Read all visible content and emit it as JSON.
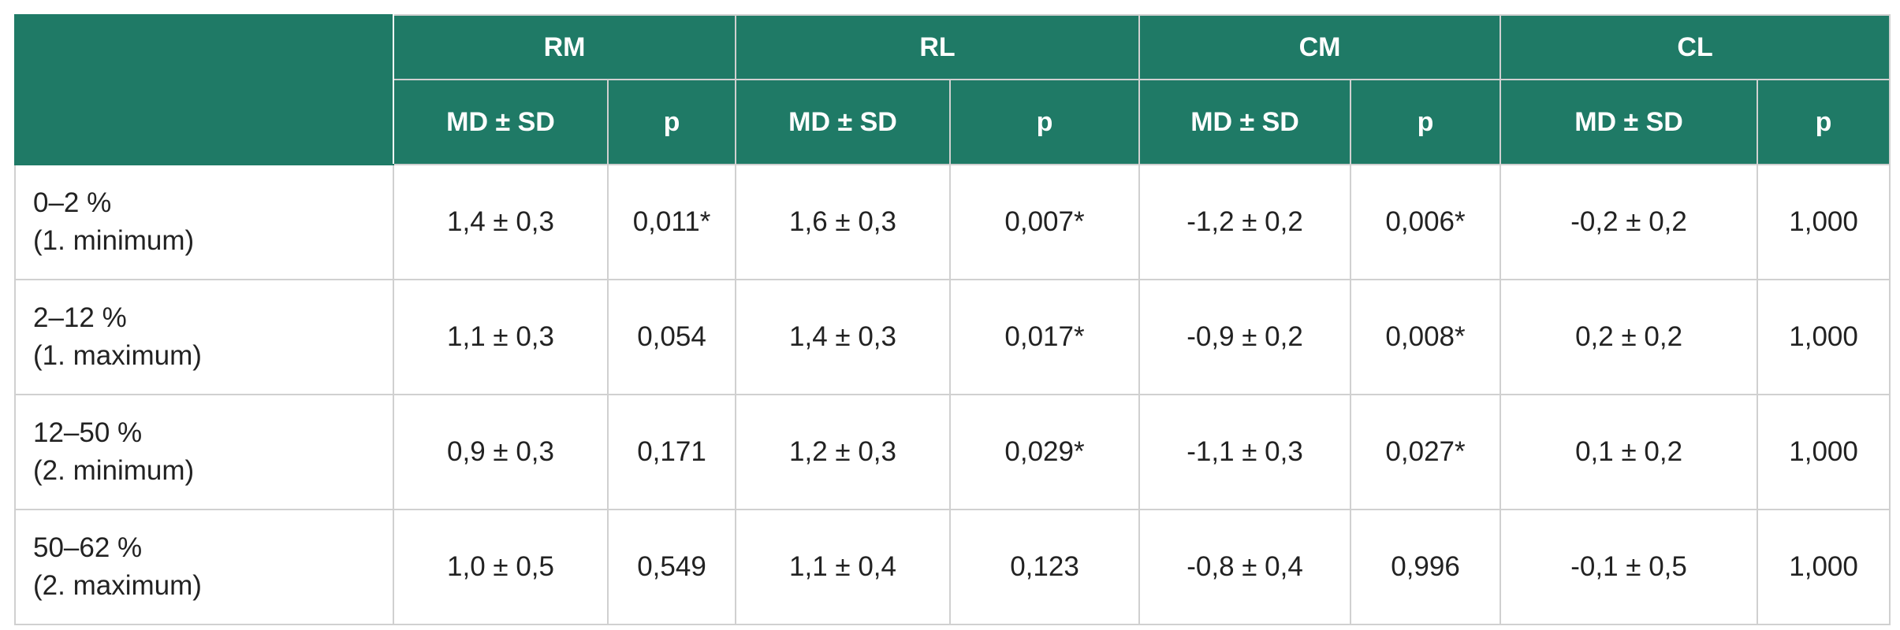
{
  "groups": [
    "RM",
    "RL",
    "CM",
    "CL"
  ],
  "subheaders": {
    "md": "MD ± SD",
    "p": "p"
  },
  "rows": [
    {
      "range": "0–2 %",
      "label": "(1. minimum)",
      "cells": [
        "1,4 ± 0,3",
        "0,011*",
        "1,6 ± 0,3",
        "0,007*",
        "-1,2 ± 0,2",
        "0,006*",
        "-0,2 ± 0,2",
        "1,000"
      ]
    },
    {
      "range": "2–12 %",
      "label": "(1. maximum)",
      "cells": [
        "1,1 ± 0,3",
        "0,054",
        "1,4 ± 0,3",
        "0,017*",
        "-0,9 ± 0,2",
        "0,008*",
        "0,2 ± 0,2",
        "1,000"
      ]
    },
    {
      "range": "12–50 %",
      "label": "(2. minimum)",
      "cells": [
        "0,9 ± 0,3",
        "0,171",
        "1,2 ± 0,3",
        "0,029*",
        "-1,1 ± 0,3",
        "0,027*",
        "0,1 ± 0,2",
        "1,000"
      ]
    },
    {
      "range": "50–62 %",
      "label": "(2. maximum)",
      "cells": [
        "1,0 ± 0,5",
        "0,549",
        "1,1 ± 0,4",
        "0,123",
        "-0,8 ± 0,4",
        "0,996",
        "-0,1 ± 0,5",
        "1,000"
      ]
    }
  ],
  "colors": {
    "header_bg": "#1f7a66",
    "header_text": "#ffffff",
    "border": "#d0d0d0"
  }
}
